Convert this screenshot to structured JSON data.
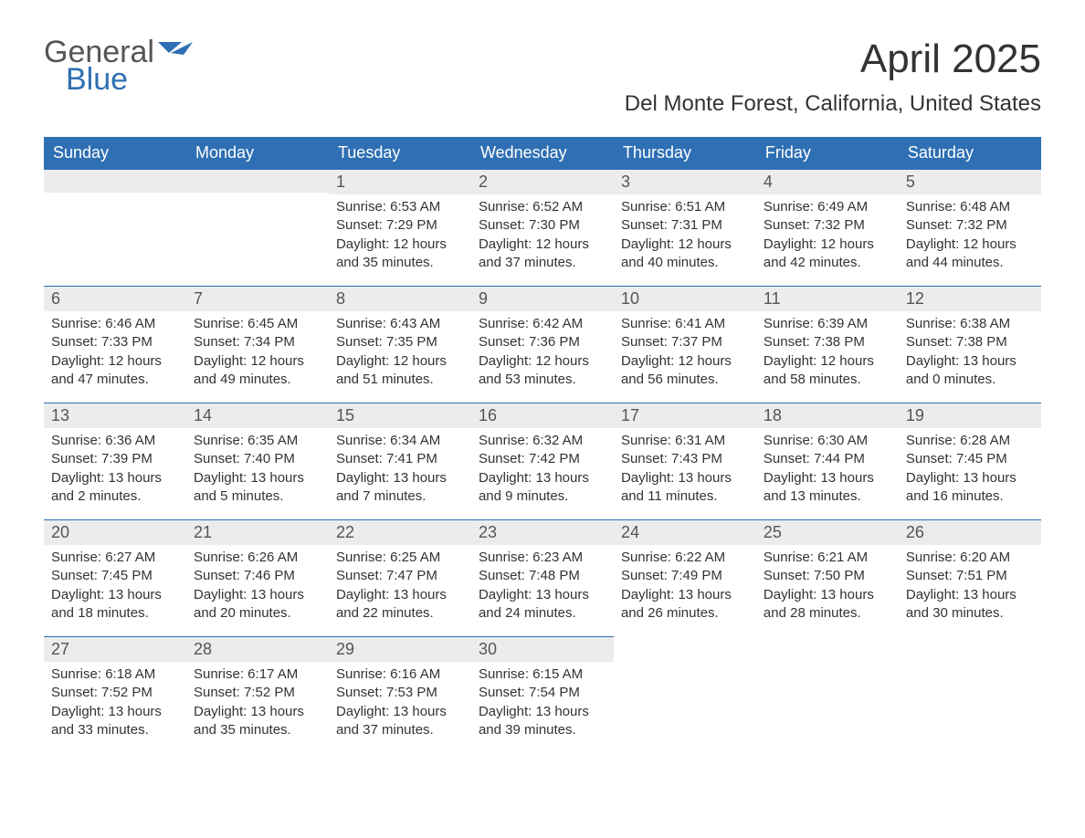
{
  "brand": {
    "top": "General",
    "bottom": "Blue",
    "flag_color": "#2f6fb3"
  },
  "title": "April 2025",
  "location": "Del Monte Forest, California, United States",
  "colors": {
    "header_bg": "#2f6fb3",
    "header_fg": "#ffffff",
    "daynum_bg": "#ececec",
    "row_divider": "#2f6fb3",
    "text": "#333333",
    "logo_gray": "#555555"
  },
  "day_headers": [
    "Sunday",
    "Monday",
    "Tuesday",
    "Wednesday",
    "Thursday",
    "Friday",
    "Saturday"
  ],
  "weeks": [
    [
      null,
      null,
      {
        "n": "1",
        "sr": "Sunrise: 6:53 AM",
        "ss": "Sunset: 7:29 PM",
        "d1": "Daylight: 12 hours",
        "d2": "and 35 minutes."
      },
      {
        "n": "2",
        "sr": "Sunrise: 6:52 AM",
        "ss": "Sunset: 7:30 PM",
        "d1": "Daylight: 12 hours",
        "d2": "and 37 minutes."
      },
      {
        "n": "3",
        "sr": "Sunrise: 6:51 AM",
        "ss": "Sunset: 7:31 PM",
        "d1": "Daylight: 12 hours",
        "d2": "and 40 minutes."
      },
      {
        "n": "4",
        "sr": "Sunrise: 6:49 AM",
        "ss": "Sunset: 7:32 PM",
        "d1": "Daylight: 12 hours",
        "d2": "and 42 minutes."
      },
      {
        "n": "5",
        "sr": "Sunrise: 6:48 AM",
        "ss": "Sunset: 7:32 PM",
        "d1": "Daylight: 12 hours",
        "d2": "and 44 minutes."
      }
    ],
    [
      {
        "n": "6",
        "sr": "Sunrise: 6:46 AM",
        "ss": "Sunset: 7:33 PM",
        "d1": "Daylight: 12 hours",
        "d2": "and 47 minutes."
      },
      {
        "n": "7",
        "sr": "Sunrise: 6:45 AM",
        "ss": "Sunset: 7:34 PM",
        "d1": "Daylight: 12 hours",
        "d2": "and 49 minutes."
      },
      {
        "n": "8",
        "sr": "Sunrise: 6:43 AM",
        "ss": "Sunset: 7:35 PM",
        "d1": "Daylight: 12 hours",
        "d2": "and 51 minutes."
      },
      {
        "n": "9",
        "sr": "Sunrise: 6:42 AM",
        "ss": "Sunset: 7:36 PM",
        "d1": "Daylight: 12 hours",
        "d2": "and 53 minutes."
      },
      {
        "n": "10",
        "sr": "Sunrise: 6:41 AM",
        "ss": "Sunset: 7:37 PM",
        "d1": "Daylight: 12 hours",
        "d2": "and 56 minutes."
      },
      {
        "n": "11",
        "sr": "Sunrise: 6:39 AM",
        "ss": "Sunset: 7:38 PM",
        "d1": "Daylight: 12 hours",
        "d2": "and 58 minutes."
      },
      {
        "n": "12",
        "sr": "Sunrise: 6:38 AM",
        "ss": "Sunset: 7:38 PM",
        "d1": "Daylight: 13 hours",
        "d2": "and 0 minutes."
      }
    ],
    [
      {
        "n": "13",
        "sr": "Sunrise: 6:36 AM",
        "ss": "Sunset: 7:39 PM",
        "d1": "Daylight: 13 hours",
        "d2": "and 2 minutes."
      },
      {
        "n": "14",
        "sr": "Sunrise: 6:35 AM",
        "ss": "Sunset: 7:40 PM",
        "d1": "Daylight: 13 hours",
        "d2": "and 5 minutes."
      },
      {
        "n": "15",
        "sr": "Sunrise: 6:34 AM",
        "ss": "Sunset: 7:41 PM",
        "d1": "Daylight: 13 hours",
        "d2": "and 7 minutes."
      },
      {
        "n": "16",
        "sr": "Sunrise: 6:32 AM",
        "ss": "Sunset: 7:42 PM",
        "d1": "Daylight: 13 hours",
        "d2": "and 9 minutes."
      },
      {
        "n": "17",
        "sr": "Sunrise: 6:31 AM",
        "ss": "Sunset: 7:43 PM",
        "d1": "Daylight: 13 hours",
        "d2": "and 11 minutes."
      },
      {
        "n": "18",
        "sr": "Sunrise: 6:30 AM",
        "ss": "Sunset: 7:44 PM",
        "d1": "Daylight: 13 hours",
        "d2": "and 13 minutes."
      },
      {
        "n": "19",
        "sr": "Sunrise: 6:28 AM",
        "ss": "Sunset: 7:45 PM",
        "d1": "Daylight: 13 hours",
        "d2": "and 16 minutes."
      }
    ],
    [
      {
        "n": "20",
        "sr": "Sunrise: 6:27 AM",
        "ss": "Sunset: 7:45 PM",
        "d1": "Daylight: 13 hours",
        "d2": "and 18 minutes."
      },
      {
        "n": "21",
        "sr": "Sunrise: 6:26 AM",
        "ss": "Sunset: 7:46 PM",
        "d1": "Daylight: 13 hours",
        "d2": "and 20 minutes."
      },
      {
        "n": "22",
        "sr": "Sunrise: 6:25 AM",
        "ss": "Sunset: 7:47 PM",
        "d1": "Daylight: 13 hours",
        "d2": "and 22 minutes."
      },
      {
        "n": "23",
        "sr": "Sunrise: 6:23 AM",
        "ss": "Sunset: 7:48 PM",
        "d1": "Daylight: 13 hours",
        "d2": "and 24 minutes."
      },
      {
        "n": "24",
        "sr": "Sunrise: 6:22 AM",
        "ss": "Sunset: 7:49 PM",
        "d1": "Daylight: 13 hours",
        "d2": "and 26 minutes."
      },
      {
        "n": "25",
        "sr": "Sunrise: 6:21 AM",
        "ss": "Sunset: 7:50 PM",
        "d1": "Daylight: 13 hours",
        "d2": "and 28 minutes."
      },
      {
        "n": "26",
        "sr": "Sunrise: 6:20 AM",
        "ss": "Sunset: 7:51 PM",
        "d1": "Daylight: 13 hours",
        "d2": "and 30 minutes."
      }
    ],
    [
      {
        "n": "27",
        "sr": "Sunrise: 6:18 AM",
        "ss": "Sunset: 7:52 PM",
        "d1": "Daylight: 13 hours",
        "d2": "and 33 minutes."
      },
      {
        "n": "28",
        "sr": "Sunrise: 6:17 AM",
        "ss": "Sunset: 7:52 PM",
        "d1": "Daylight: 13 hours",
        "d2": "and 35 minutes."
      },
      {
        "n": "29",
        "sr": "Sunrise: 6:16 AM",
        "ss": "Sunset: 7:53 PM",
        "d1": "Daylight: 13 hours",
        "d2": "and 37 minutes."
      },
      {
        "n": "30",
        "sr": "Sunrise: 6:15 AM",
        "ss": "Sunset: 7:54 PM",
        "d1": "Daylight: 13 hours",
        "d2": "and 39 minutes."
      },
      null,
      null,
      null
    ]
  ]
}
